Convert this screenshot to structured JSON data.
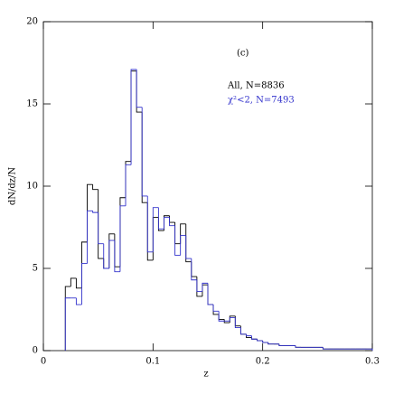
{
  "chart_data": {
    "type": "histogram",
    "annotations": [
      "(c)"
    ],
    "x_label": "z",
    "y_label": "dN/dz/N",
    "bins": [
      0.02,
      0.025,
      0.03,
      0.035,
      0.04,
      0.045,
      0.05,
      0.055,
      0.06,
      0.065,
      0.07,
      0.075,
      0.08,
      0.085,
      0.09,
      0.095,
      0.1,
      0.105,
      0.11,
      0.115,
      0.12,
      0.125,
      0.13,
      0.135,
      0.14,
      0.145,
      0.15,
      0.155,
      0.16,
      0.165,
      0.17,
      0.175,
      0.18,
      0.185,
      0.19,
      0.195,
      0.2,
      0.205,
      0.21,
      0.215,
      0.22,
      0.225,
      0.23,
      0.235,
      0.24,
      0.245,
      0.25,
      0.255,
      0.26,
      0.265,
      0.27,
      0.275,
      0.28,
      0.285,
      0.29,
      0.295,
      0.3
    ],
    "series": [
      {
        "name": "All, N=8836",
        "color": "#000000",
        "values": [
          3.9,
          4.4,
          3.8,
          6.6,
          10.1,
          9.8,
          5.6,
          5.0,
          7.1,
          5.1,
          9.3,
          11.5,
          17.0,
          14.5,
          9.0,
          5.5,
          8.1,
          7.3,
          8.2,
          7.8,
          6.5,
          7.7,
          5.4,
          4.5,
          3.3,
          4.0,
          2.8,
          2.2,
          1.9,
          1.7,
          2.1,
          1.5,
          1.0,
          0.8,
          0.7,
          0.6,
          0.5,
          0.4,
          0.4,
          0.3,
          0.3,
          0.3,
          0.2,
          0.2,
          0.2,
          0.2,
          0.2,
          0.1,
          0.1,
          0.1,
          0.1,
          0.1,
          0.1,
          0.1,
          0.1,
          0.1
        ]
      },
      {
        "name": "χ²<2, N=7493",
        "color": "#3333cc",
        "values": [
          3.2,
          3.2,
          2.8,
          5.3,
          8.5,
          8.4,
          6.5,
          5.0,
          6.7,
          4.8,
          8.8,
          11.3,
          17.1,
          14.8,
          9.4,
          6.0,
          8.7,
          7.4,
          8.1,
          7.6,
          5.8,
          7.0,
          5.6,
          4.3,
          3.6,
          4.1,
          2.8,
          2.4,
          1.8,
          1.8,
          2.0,
          1.4,
          1.0,
          0.9,
          0.7,
          0.6,
          0.5,
          0.4,
          0.4,
          0.3,
          0.3,
          0.3,
          0.2,
          0.2,
          0.2,
          0.2,
          0.2,
          0.1,
          0.1,
          0.1,
          0.1,
          0.1,
          0.1,
          0.1,
          0.1,
          0.1
        ]
      }
    ],
    "xlim": [
      0,
      0.3
    ],
    "xticks": [
      0,
      0.1,
      0.2,
      0.3
    ],
    "ylim": [
      0,
      20
    ],
    "yticks": [
      0,
      5,
      10,
      15,
      20
    ]
  }
}
